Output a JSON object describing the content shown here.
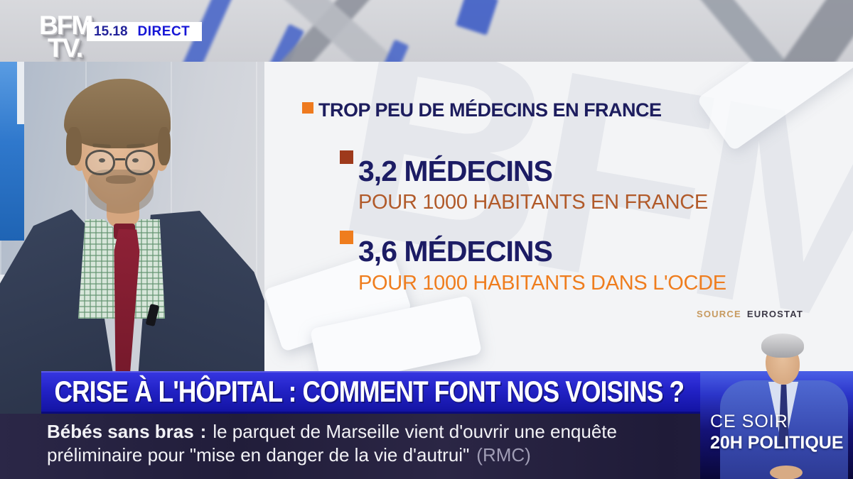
{
  "header": {
    "logo_line1": "BFM",
    "logo_line2": "TV.",
    "time": "15.18",
    "live_label": "DIRECT"
  },
  "infographic": {
    "title": "TROP PEU DE MÉDECINS EN FRANCE",
    "stats": [
      {
        "value": "3,2 MÉDECINS",
        "caption": "POUR 1000 HABITANTS EN FRANCE"
      },
      {
        "value": "3,6 MÉDECINS",
        "caption": "POUR 1000 HABITANTS DANS L'OCDE"
      }
    ],
    "source_label": "SOURCE",
    "source_value": "EUROSTAT",
    "watermark": "BFM"
  },
  "banner": {
    "headline": "CRISE À L'HÔPITAL : COMMENT FONT NOS VOISINS ?"
  },
  "ticker": {
    "lead": "Bébés sans bras",
    "colon": ":",
    "line1_rest": "le parquet de Marseille vient d'ouvrir une enquête",
    "line2": "préliminaire pour \"mise en danger de la vie d'autrui\"",
    "attribution": "(RMC)"
  },
  "promo": {
    "line1": "CE SOIR",
    "line2": "20H POLITIQUE"
  },
  "colors": {
    "accent_orange": "#ee7a1f",
    "accent_dark_red": "#9e3a1c",
    "caption_sienna": "#b15a2a",
    "headline_navy": "#1c1c64",
    "banner_blue": "#2222c6",
    "ticker_navy": "#262242",
    "live_blue": "#1616d6",
    "source_gold": "#c79a5f"
  }
}
